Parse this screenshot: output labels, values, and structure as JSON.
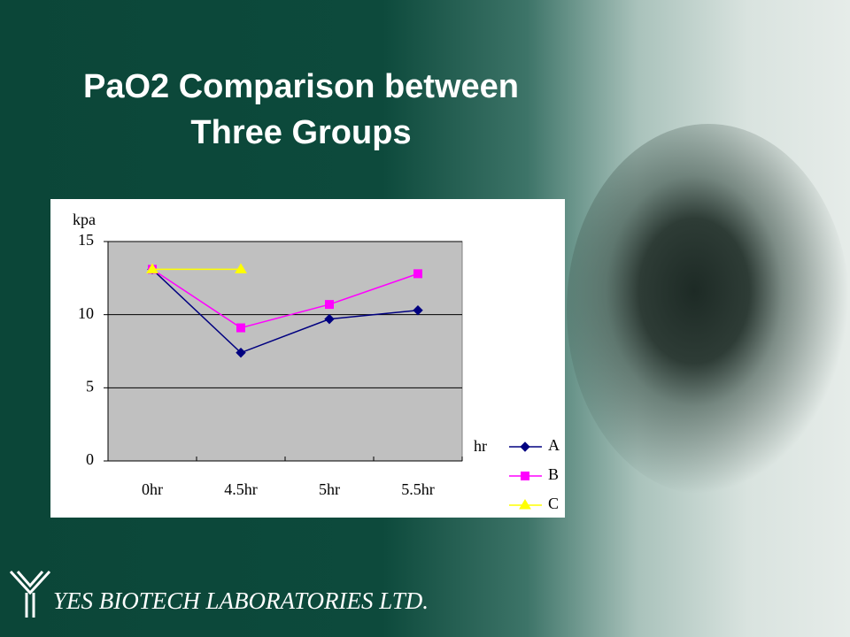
{
  "chart_data": {
    "type": "line",
    "title": "PaO2 Comparison between Three Groups",
    "y_label": "kpa",
    "x_label": "hr",
    "categories": [
      "0hr",
      "4.5hr",
      "5hr",
      "5.5hr"
    ],
    "series": [
      {
        "name": "A",
        "color": "#000080",
        "marker": "diamond",
        "values": [
          13.1,
          7.4,
          9.7,
          10.3
        ]
      },
      {
        "name": "B",
        "color": "#ff00ff",
        "marker": "square",
        "values": [
          13.1,
          9.1,
          10.7,
          12.8
        ]
      },
      {
        "name": "C",
        "color": "#ffff00",
        "marker": "triangle",
        "values": [
          13.1,
          13.1,
          null,
          null
        ]
      }
    ],
    "ylim": [
      0,
      15
    ],
    "yticks": [
      0,
      5,
      10,
      15
    ],
    "grid": true,
    "legend": "right"
  },
  "footer": "YES BIOTECH LABORATORIES LTD."
}
